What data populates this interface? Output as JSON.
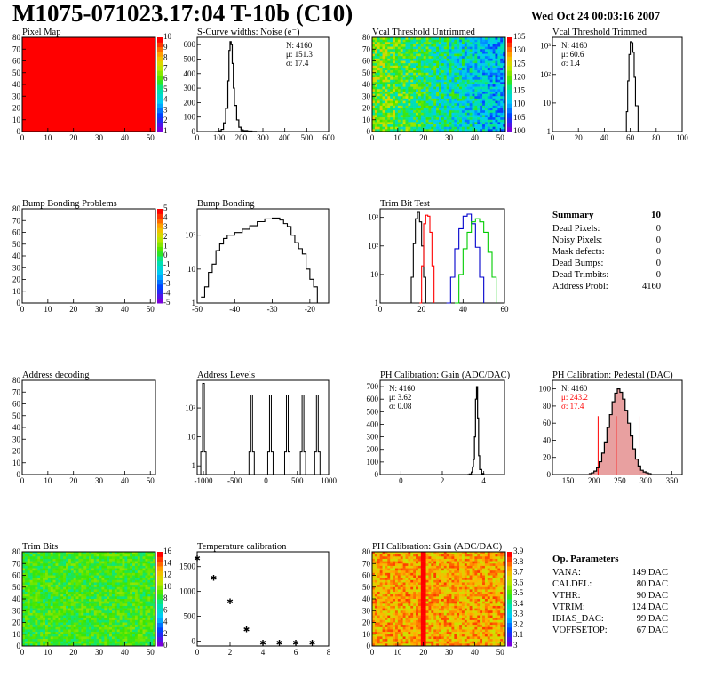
{
  "header": {
    "title": "M1075-071023.17:04 T-10b (C10)",
    "date": "Wed Oct 24 00:03:16 2007"
  },
  "colors": {
    "black": "#000000",
    "red": "#ff0000",
    "blue": "#0000cc",
    "green": "#00cc00",
    "pedestal_fill": "#e8a0a0"
  },
  "chart_data": [
    {
      "id": "pixel-map",
      "type": "heatmap",
      "title": "Pixel Map",
      "xlim": [
        0,
        52
      ],
      "ylim": [
        0,
        80
      ],
      "xticks": [
        "0",
        "10",
        "20",
        "30",
        "40",
        "50"
      ],
      "yticks": [
        "0",
        "10",
        "20",
        "30",
        "40",
        "50",
        "60",
        "70",
        "80"
      ],
      "colorscale_ticks": [
        "1",
        "2",
        "3",
        "4",
        "5",
        "6",
        "7",
        "8",
        "9",
        "10"
      ],
      "fill": "uniform maximum (red)"
    },
    {
      "id": "scurve",
      "type": "line",
      "title": "S-Curve widths: Noise (e⁻)",
      "xlim": [
        0,
        600
      ],
      "ylim": [
        0,
        650
      ],
      "xticks": [
        "0",
        "100",
        "200",
        "300",
        "400",
        "500",
        "600"
      ],
      "yticks": [
        "0",
        "100",
        "200",
        "300",
        "400",
        "500",
        "600"
      ],
      "stats": [
        "N: 4160",
        "μ: 151.3",
        "σ: 17.4"
      ],
      "x": [
        80,
        100,
        110,
        120,
        130,
        140,
        145,
        150,
        155,
        160,
        165,
        170,
        180,
        190,
        200,
        210,
        230,
        250,
        270
      ],
      "y": [
        0,
        5,
        15,
        60,
        160,
        350,
        560,
        620,
        600,
        470,
        300,
        180,
        80,
        30,
        12,
        6,
        3,
        1,
        0
      ]
    },
    {
      "id": "vcal-untrimmed",
      "type": "heatmap",
      "title": "Vcal Threshold Untrimmed",
      "xlim": [
        0,
        52
      ],
      "ylim": [
        0,
        80
      ],
      "xticks": [
        "0",
        "10",
        "20",
        "30",
        "40",
        "50"
      ],
      "yticks": [
        "0",
        "10",
        "20",
        "30",
        "40",
        "50",
        "60",
        "70",
        "80"
      ],
      "colorscale_ticks": [
        "100",
        "105",
        "110",
        "115",
        "120",
        "125",
        "130",
        "135"
      ]
    },
    {
      "id": "vcal-trimmed",
      "type": "line",
      "title": "Vcal Threshold Trimmed",
      "xlim": [
        0,
        100
      ],
      "ylim_log": [
        1,
        2000
      ],
      "xticks": [
        "0",
        "20",
        "40",
        "60",
        "80",
        "100"
      ],
      "yticks": [
        "1",
        "10",
        "10²",
        "10³"
      ],
      "stats": [
        "N: 4160",
        "μ: 60.6",
        "σ: 1.4"
      ],
      "x": [
        55,
        57,
        58,
        59,
        60,
        61,
        62,
        63,
        64,
        66
      ],
      "y": [
        1,
        5,
        60,
        500,
        1400,
        1300,
        600,
        80,
        8,
        1
      ]
    },
    {
      "id": "bump-problems",
      "type": "heatmap",
      "title": "Bump Bonding Problems",
      "xlim": [
        0,
        52
      ],
      "ylim": [
        0,
        80
      ],
      "xticks": [
        "0",
        "10",
        "20",
        "30",
        "40",
        "50"
      ],
      "yticks": [
        "0",
        "10",
        "20",
        "30",
        "40",
        "50",
        "60",
        "70",
        "80"
      ],
      "colorscale_ticks": [
        "-5",
        "-4",
        "-3",
        "-2",
        "-1",
        "0",
        "1",
        "2",
        "3",
        "4",
        "5"
      ]
    },
    {
      "id": "bump-bonding",
      "type": "line",
      "title": "Bump Bonding",
      "xlim": [
        -50,
        -15
      ],
      "ylim_log": [
        1,
        600
      ],
      "xticks": [
        "-50",
        "-40",
        "-30",
        "-20"
      ],
      "yticks": [
        "1",
        "10",
        "10²"
      ],
      "x": [
        -49,
        -48,
        -47,
        -46,
        -45,
        -44,
        -43,
        -42,
        -40,
        -38,
        -36,
        -34,
        -32,
        -30,
        -28,
        -27,
        -26,
        -25,
        -24,
        -23,
        -22,
        -21,
        -20,
        -19,
        -18
      ],
      "y": [
        1.5,
        3,
        8,
        14,
        35,
        55,
        80,
        100,
        120,
        150,
        190,
        250,
        300,
        320,
        280,
        220,
        180,
        100,
        60,
        40,
        28,
        10,
        5,
        3,
        1
      ]
    },
    {
      "id": "trim-bit-test",
      "type": "line",
      "title": "Trim Bit Test",
      "xlim": [
        0,
        60
      ],
      "ylim_log": [
        1,
        2000
      ],
      "xticks": [
        "0",
        "20",
        "40",
        "60"
      ],
      "yticks": [
        "1",
        "10",
        "10²",
        "10³"
      ],
      "series": [
        {
          "color": "#000000",
          "x": [
            14,
            15,
            16,
            17,
            18,
            19,
            20,
            21,
            22
          ],
          "y": [
            1,
            8,
            120,
            900,
            1500,
            700,
            100,
            8,
            1
          ]
        },
        {
          "color": "#ff0000",
          "x": [
            19,
            20,
            21,
            22,
            23,
            24,
            25,
            26
          ],
          "y": [
            1,
            20,
            600,
            1200,
            1100,
            300,
            20,
            1
          ]
        },
        {
          "color": "#0000cc",
          "x": [
            32,
            34,
            36,
            38,
            40,
            42,
            44,
            46,
            48,
            50
          ],
          "y": [
            1,
            8,
            80,
            400,
            1100,
            1300,
            600,
            90,
            8,
            1
          ]
        },
        {
          "color": "#00cc00",
          "x": [
            36,
            38,
            40,
            42,
            44,
            46,
            48,
            50,
            52,
            54,
            56
          ],
          "y": [
            1,
            10,
            80,
            300,
            700,
            900,
            700,
            300,
            60,
            8,
            1
          ]
        }
      ]
    },
    {
      "id": "address-decoding",
      "type": "heatmap",
      "title": "Address decoding",
      "xlim": [
        0,
        52
      ],
      "ylim": [
        0,
        80
      ],
      "xticks": [
        "0",
        "10",
        "20",
        "30",
        "40",
        "50"
      ],
      "yticks": [
        "0",
        "10",
        "20",
        "30",
        "40",
        "50",
        "60",
        "70",
        "80"
      ]
    },
    {
      "id": "address-levels",
      "type": "line",
      "title": "Address Levels",
      "xlim": [
        -1100,
        1000
      ],
      "ylim_log": [
        0.5,
        900
      ],
      "xticks": [
        "-1000",
        "-500",
        "0",
        "500",
        "1000"
      ],
      "yticks": [
        "1",
        "10",
        "10²"
      ],
      "peaks_x": [
        -1000,
        -230,
        70,
        340,
        590,
        820
      ],
      "peaks_y": [
        700,
        280,
        280,
        280,
        280,
        280
      ]
    },
    {
      "id": "ph-gain",
      "type": "line",
      "title": "PH Calibration: Gain (ADC/DAC)",
      "xlim": [
        -1,
        5
      ],
      "ylim": [
        0,
        750
      ],
      "xticks": [
        "0",
        "2",
        "4"
      ],
      "yticks": [
        "0",
        "100",
        "200",
        "300",
        "400",
        "500",
        "600",
        "700"
      ],
      "stats": [
        "N: 4160",
        "μ: 3.62",
        "σ: 0.08"
      ],
      "x": [
        3.2,
        3.3,
        3.4,
        3.45,
        3.5,
        3.55,
        3.6,
        3.65,
        3.7,
        3.75,
        3.8,
        3.9,
        4.0
      ],
      "y": [
        0,
        5,
        20,
        60,
        120,
        300,
        600,
        700,
        450,
        150,
        40,
        8,
        0
      ]
    },
    {
      "id": "ph-pedestal",
      "type": "line",
      "title": "PH Calibration: Pedestal (DAC)",
      "xlim": [
        120,
        370
      ],
      "ylim": [
        0,
        110
      ],
      "xticks": [
        "150",
        "200",
        "250",
        "300",
        "350"
      ],
      "yticks": [
        "0",
        "20",
        "40",
        "60",
        "80",
        "100"
      ],
      "stats": [
        "N: 4160",
        "μ: 243.2",
        "σ: 17.4"
      ],
      "stat_colors": [
        "#000000",
        "#ff0000",
        "#ff0000"
      ],
      "x": [
        190,
        195,
        200,
        205,
        210,
        215,
        220,
        225,
        230,
        235,
        240,
        245,
        250,
        255,
        260,
        265,
        270,
        275,
        280,
        285,
        290,
        295,
        300,
        305,
        310
      ],
      "y": [
        1,
        2,
        4,
        8,
        15,
        25,
        38,
        55,
        70,
        85,
        95,
        100,
        96,
        88,
        75,
        60,
        45,
        30,
        18,
        10,
        5,
        3,
        2,
        1,
        0
      ],
      "red_lines_x": [
        208,
        243,
        287
      ]
    },
    {
      "id": "trim-bits",
      "type": "heatmap",
      "title": "Trim Bits",
      "xlim": [
        0,
        52
      ],
      "ylim": [
        0,
        80
      ],
      "xticks": [
        "0",
        "10",
        "20",
        "30",
        "40",
        "50"
      ],
      "yticks": [
        "0",
        "10",
        "20",
        "30",
        "40",
        "50",
        "60",
        "70",
        "80"
      ],
      "colorscale_ticks": [
        "0",
        "2",
        "4",
        "6",
        "8",
        "10",
        "12",
        "14",
        "16"
      ]
    },
    {
      "id": "temperature",
      "type": "scatter",
      "title": "Temperature calibration",
      "xlim": [
        0,
        8
      ],
      "ylim": [
        -100,
        1800
      ],
      "xticks": [
        "0",
        "2",
        "4",
        "6",
        "8"
      ],
      "yticks": [
        "0",
        "500",
        "1000",
        "1500"
      ],
      "x": [
        0,
        1,
        2,
        3,
        4,
        5,
        6,
        7
      ],
      "y": [
        1700,
        1310,
        830,
        270,
        0,
        0,
        0,
        0
      ]
    },
    {
      "id": "ph-gain-map",
      "type": "heatmap",
      "title": "PH Calibration: Gain (ADC/DAC)",
      "xlim": [
        0,
        52
      ],
      "ylim": [
        0,
        80
      ],
      "xticks": [
        "0",
        "10",
        "20",
        "30",
        "40",
        "50"
      ],
      "yticks": [
        "0",
        "10",
        "20",
        "30",
        "40",
        "50",
        "60",
        "70",
        "80"
      ],
      "colorscale_ticks": [
        "3",
        "3.1",
        "3.2",
        "3.3",
        "3.4",
        "3.5",
        "3.6",
        "3.7",
        "3.8",
        "3.9"
      ]
    }
  ],
  "summary": {
    "heading": "Summary",
    "heading_value": "10",
    "rows": [
      {
        "label": "Dead Pixels:",
        "value": "0"
      },
      {
        "label": "Noisy Pixels:",
        "value": "0"
      },
      {
        "label": "Mask defects:",
        "value": "0"
      },
      {
        "label": "Dead Bumps:",
        "value": "0"
      },
      {
        "label": "Dead Trimbits:",
        "value": "0"
      },
      {
        "label": "Address Probl:",
        "value": "4160"
      }
    ]
  },
  "params": {
    "heading": "Op. Parameters",
    "rows": [
      {
        "label": "VANA:",
        "value": "149 DAC"
      },
      {
        "label": "CALDEL:",
        "value": "80 DAC"
      },
      {
        "label": "VTHR:",
        "value": "90 DAC"
      },
      {
        "label": "VTRIM:",
        "value": "124 DAC"
      },
      {
        "label": "IBIAS_DAC:",
        "value": "99 DAC"
      },
      {
        "label": "VOFFSETOP:",
        "value": "67 DAC"
      }
    ]
  }
}
